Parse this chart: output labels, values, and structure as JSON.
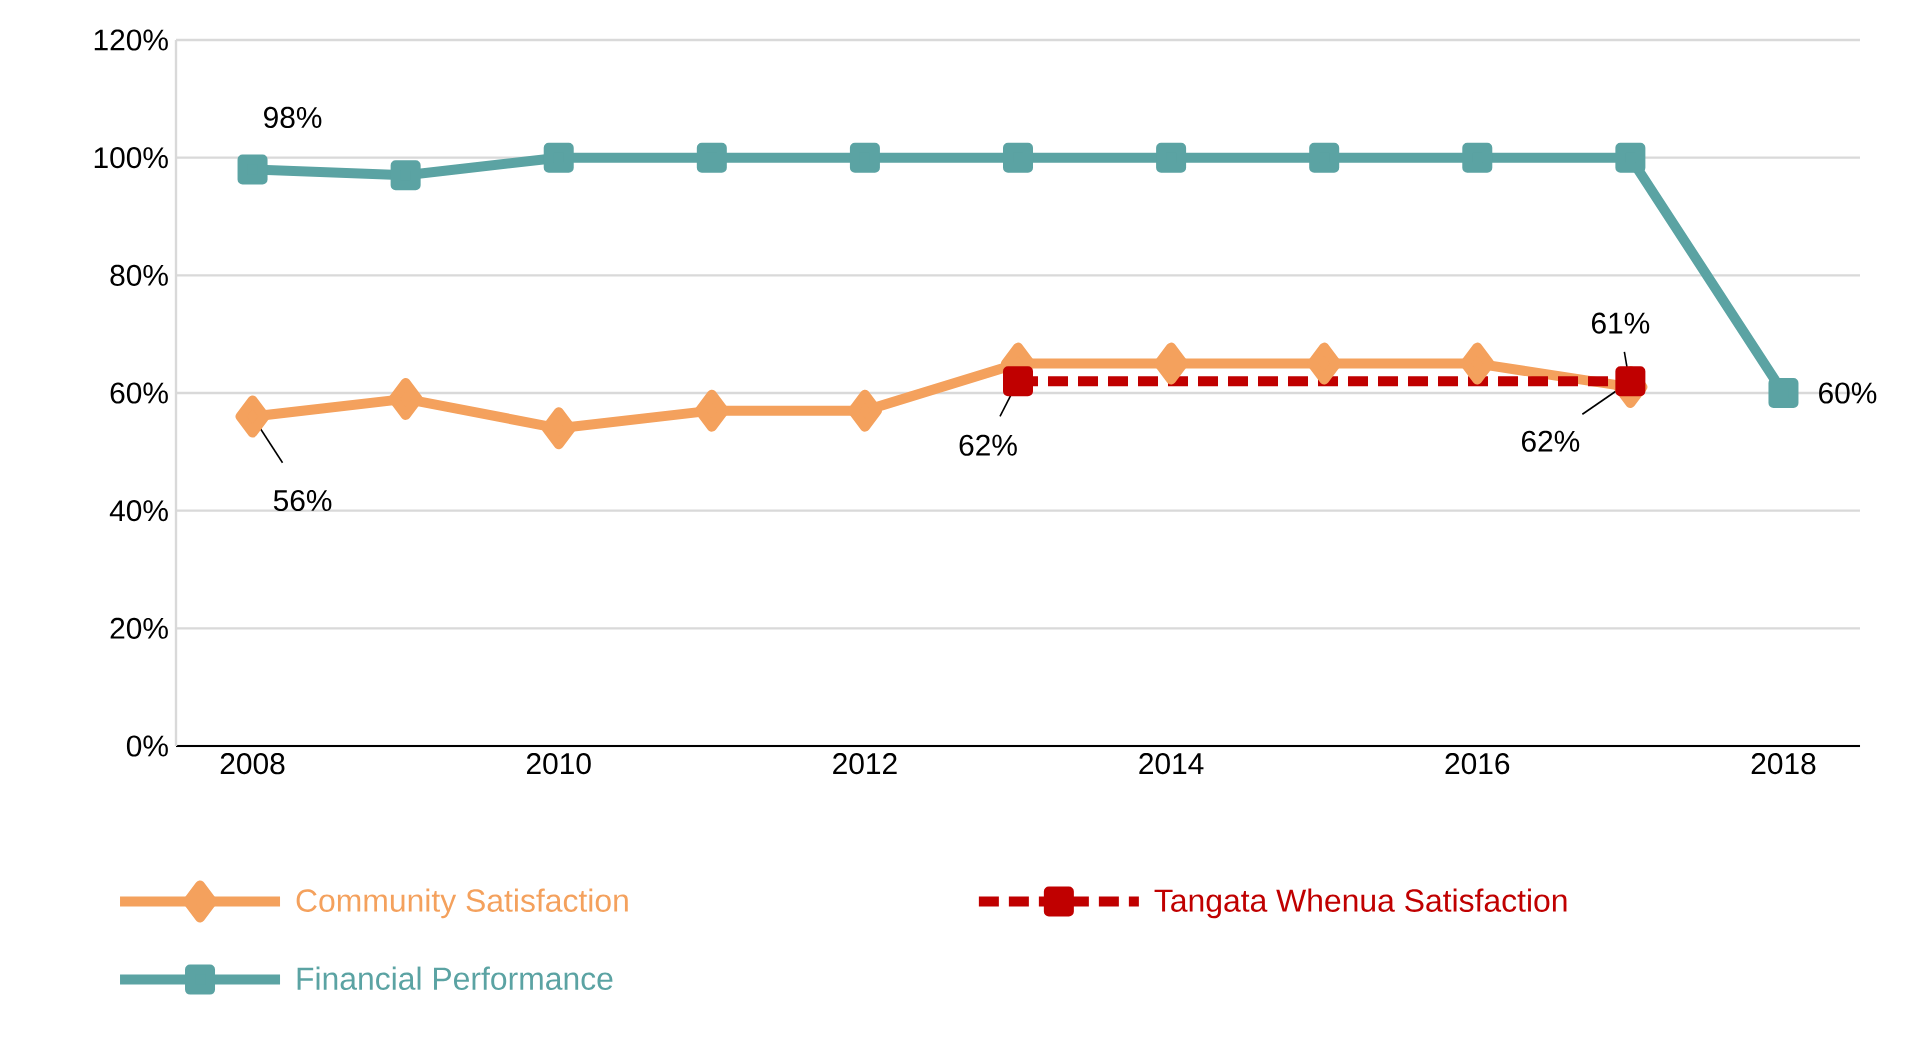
{
  "chart_data": {
    "type": "line",
    "x": [
      2008,
      2009,
      2010,
      2011,
      2012,
      2013,
      2014,
      2015,
      2016,
      2017,
      2018
    ],
    "series": [
      {
        "name": "Community Satisfaction",
        "color": "#f4a15d",
        "marker": "diamond",
        "line_style": "solid",
        "x": [
          2008,
          2009,
          2010,
          2011,
          2012,
          2013,
          2014,
          2015,
          2016,
          2017
        ],
        "values": [
          56,
          59,
          54,
          57,
          57,
          65,
          65,
          65,
          65,
          61
        ]
      },
      {
        "name": "Tangata Whenua Satisfaction",
        "color": "#c00000",
        "marker": "square",
        "line_style": "dashed",
        "x": [
          2013,
          2017
        ],
        "values": [
          62,
          62
        ]
      },
      {
        "name": "Financial Performance",
        "color": "#5ba3a3",
        "marker": "square",
        "line_style": "solid",
        "values": [
          98,
          97,
          100,
          100,
          100,
          100,
          100,
          100,
          100,
          100,
          60
        ]
      }
    ],
    "xlim": [
      2007.5,
      2018.5
    ],
    "xticks": [
      2008,
      2010,
      2012,
      2014,
      2016,
      2018
    ],
    "ylim": [
      0,
      120
    ],
    "yticks": [
      {
        "value": 0,
        "label": "0%"
      },
      {
        "value": 20,
        "label": "20%"
      },
      {
        "value": 40,
        "label": "40%"
      },
      {
        "value": 60,
        "label": "60%"
      },
      {
        "value": 80,
        "label": "80%"
      },
      {
        "value": 100,
        "label": "100%"
      },
      {
        "value": 120,
        "label": "120%"
      }
    ],
    "grid": "y",
    "legend": "bottom",
    "annotations": [
      {
        "text": "98%",
        "x": 2008,
        "y": 98
      },
      {
        "text": "56%",
        "x": 2008,
        "y": 56
      },
      {
        "text": "62%",
        "x": 2013,
        "y": 62
      },
      {
        "text": "61%",
        "x": 2017,
        "y": 61
      },
      {
        "text": "62%",
        "x": 2017,
        "y": 62
      },
      {
        "text": "60%",
        "x": 2018,
        "y": 60
      }
    ]
  }
}
